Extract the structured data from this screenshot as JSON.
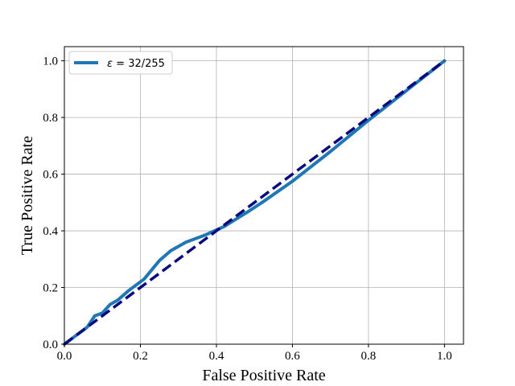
{
  "chart_data": {
    "type": "line",
    "title": "",
    "xlabel": "False Positive Rate",
    "ylabel": "True Positive Rate",
    "xlim": [
      0.0,
      1.05
    ],
    "ylim": [
      0.0,
      1.05
    ],
    "grid": true,
    "legend_position": "top-left",
    "x_ticks": [
      0.0,
      0.2,
      0.4,
      0.6,
      0.8,
      1.0
    ],
    "y_ticks": [
      0.0,
      0.2,
      0.4,
      0.6,
      0.8,
      1.0
    ],
    "x_tick_labels": [
      "0.0",
      "0.2",
      "0.4",
      "0.6",
      "0.8",
      "1.0"
    ],
    "y_tick_labels": [
      "0.0",
      "0.2",
      "0.4",
      "0.6",
      "0.8",
      "1.0"
    ],
    "series": [
      {
        "name": "ε = 32/255",
        "color": "#1f77b4",
        "style": "solid",
        "x": [
          0.0,
          0.02,
          0.04,
          0.06,
          0.08,
          0.1,
          0.12,
          0.14,
          0.17,
          0.21,
          0.25,
          0.28,
          0.32,
          0.37,
          0.42,
          0.45,
          0.48,
          0.52,
          0.6,
          0.7,
          0.8,
          0.9,
          1.0
        ],
        "y": [
          0.0,
          0.02,
          0.04,
          0.06,
          0.1,
          0.11,
          0.14,
          0.155,
          0.19,
          0.23,
          0.295,
          0.33,
          0.36,
          0.385,
          0.415,
          0.44,
          0.465,
          0.5,
          0.575,
          0.68,
          0.79,
          0.895,
          1.0
        ]
      },
      {
        "name": "",
        "color": "#0a0a80",
        "style": "dashed",
        "x": [
          0.0,
          1.0
        ],
        "y": [
          0.0,
          1.0
        ]
      }
    ],
    "legend": {
      "label_prefix": "ε",
      "label_eq": " = ",
      "label_value": "32/255"
    }
  }
}
